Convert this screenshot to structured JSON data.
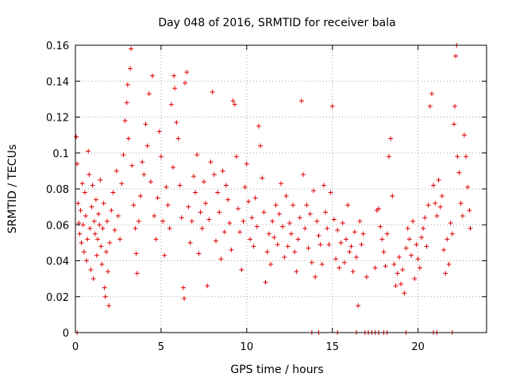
{
  "chart_data": {
    "type": "scatter",
    "title": "Day 048 of 2016, SRMTID for receiver bala",
    "xlabel": "GPS time / hours",
    "ylabel": "SRMTID / TECUs",
    "xlim": [
      0,
      24
    ],
    "ylim": [
      0,
      0.16
    ],
    "xticks": [
      0,
      5,
      10,
      15,
      20
    ],
    "xtick_labels": [
      "0",
      "5",
      "10",
      "15",
      "20"
    ],
    "yticks": [
      0,
      0.02,
      0.04,
      0.06,
      0.08,
      0.1,
      0.12,
      0.14,
      0.16
    ],
    "ytick_labels": [
      "0",
      "0.02",
      "0.04",
      "0.06",
      "0.08",
      "0.1",
      "0.12",
      "0.14",
      "0.16"
    ],
    "grid": true,
    "marker": "plus",
    "color": "#e00000",
    "series": [
      {
        "name": "SRMTID",
        "points": [
          [
            0.05,
            0.109
          ],
          [
            0.1,
            0.094
          ],
          [
            0.15,
            0.072
          ],
          [
            0.2,
            0.061
          ],
          [
            0.25,
            0.055
          ],
          [
            0.3,
            0.068
          ],
          [
            0.35,
            0.05
          ],
          [
            0.4,
            0.083
          ],
          [
            0.45,
            0.06
          ],
          [
            0.5,
            0.045
          ],
          [
            0.55,
            0.078
          ],
          [
            0.6,
            0.065
          ],
          [
            0.65,
            0.04
          ],
          [
            0.7,
            0.052
          ],
          [
            0.75,
            0.101
          ],
          [
            0.8,
            0.088
          ],
          [
            0.85,
            0.058
          ],
          [
            0.9,
            0.035
          ],
          [
            0.95,
            0.07
          ],
          [
            1.0,
            0.082
          ],
          [
            1.05,
            0.03
          ],
          [
            1.1,
            0.062
          ],
          [
            1.15,
            0.055
          ],
          [
            1.2,
            0.074
          ],
          [
            1.25,
            0.043
          ],
          [
            1.3,
            0.052
          ],
          [
            1.35,
            0.066
          ],
          [
            1.4,
            0.06
          ],
          [
            1.45,
            0.085
          ],
          [
            1.5,
            0.048
          ],
          [
            1.55,
            0.038
          ],
          [
            1.6,
            0.058
          ],
          [
            1.65,
            0.072
          ],
          [
            1.7,
            0.025
          ],
          [
            1.75,
            0.02
          ],
          [
            1.8,
            0.045
          ],
          [
            1.85,
            0.062
          ],
          [
            1.9,
            0.034
          ],
          [
            1.95,
            0.015
          ],
          [
            2.0,
            0.05
          ],
          [
            2.1,
            0.068
          ],
          [
            2.2,
            0.078
          ],
          [
            2.3,
            0.057
          ],
          [
            2.4,
            0.09
          ],
          [
            2.5,
            0.065
          ],
          [
            2.6,
            0.052
          ],
          [
            2.7,
            0.083
          ],
          [
            2.8,
            0.099
          ],
          [
            2.9,
            0.118
          ],
          [
            3.0,
            0.128
          ],
          [
            3.05,
            0.138
          ],
          [
            3.1,
            0.108
          ],
          [
            3.2,
            0.147
          ],
          [
            3.25,
            0.158
          ],
          [
            3.3,
            0.093
          ],
          [
            3.4,
            0.071
          ],
          [
            3.5,
            0.058
          ],
          [
            3.55,
            0.044
          ],
          [
            3.6,
            0.033
          ],
          [
            3.7,
            0.062
          ],
          [
            3.8,
            0.076
          ],
          [
            3.9,
            0.095
          ],
          [
            4.0,
            0.088
          ],
          [
            4.1,
            0.116
          ],
          [
            4.2,
            0.104
          ],
          [
            4.3,
            0.133
          ],
          [
            4.4,
            0.084
          ],
          [
            4.5,
            0.143
          ],
          [
            4.6,
            0.065
          ],
          [
            4.7,
            0.052
          ],
          [
            4.8,
            0.075
          ],
          [
            4.9,
            0.112
          ],
          [
            5.0,
            0.098
          ],
          [
            5.1,
            0.062
          ],
          [
            5.2,
            0.043
          ],
          [
            5.3,
            0.081
          ],
          [
            5.4,
            0.071
          ],
          [
            5.5,
            0.058
          ],
          [
            5.6,
            0.127
          ],
          [
            5.7,
            0.092
          ],
          [
            5.75,
            0.143
          ],
          [
            5.8,
            0.136
          ],
          [
            5.9,
            0.117
          ],
          [
            6.0,
            0.108
          ],
          [
            6.1,
            0.082
          ],
          [
            6.2,
            0.064
          ],
          [
            6.3,
            0.025
          ],
          [
            6.35,
            0.019
          ],
          [
            6.4,
            0.139
          ],
          [
            6.5,
            0.145
          ],
          [
            6.6,
            0.07
          ],
          [
            6.7,
            0.05
          ],
          [
            6.8,
            0.062
          ],
          [
            6.9,
            0.087
          ],
          [
            7.0,
            0.078
          ],
          [
            7.1,
            0.099
          ],
          [
            7.2,
            0.044
          ],
          [
            7.3,
            0.067
          ],
          [
            7.4,
            0.058
          ],
          [
            7.5,
            0.084
          ],
          [
            7.6,
            0.072
          ],
          [
            7.7,
            0.026
          ],
          [
            7.8,
            0.063
          ],
          [
            7.9,
            0.095
          ],
          [
            8.0,
            0.134
          ],
          [
            8.1,
            0.088
          ],
          [
            8.2,
            0.051
          ],
          [
            8.3,
            0.078
          ],
          [
            8.4,
            0.067
          ],
          [
            8.5,
            0.041
          ],
          [
            8.6,
            0.09
          ],
          [
            8.7,
            0.056
          ],
          [
            8.8,
            0.082
          ],
          [
            8.9,
            0.074
          ],
          [
            9.0,
            0.061
          ],
          [
            9.1,
            0.046
          ],
          [
            9.2,
            0.129
          ],
          [
            9.3,
            0.127
          ],
          [
            9.4,
            0.098
          ],
          [
            9.5,
            0.069
          ],
          [
            9.6,
            0.056
          ],
          [
            9.7,
            0.035
          ],
          [
            9.8,
            0.062
          ],
          [
            9.9,
            0.081
          ],
          [
            10.0,
            0.094
          ],
          [
            10.1,
            0.073
          ],
          [
            10.2,
            0.052
          ],
          [
            10.3,
            0.064
          ],
          [
            10.4,
            0.048
          ],
          [
            10.5,
            0.075
          ],
          [
            10.6,
            0.059
          ],
          [
            10.7,
            0.115
          ],
          [
            10.8,
            0.104
          ],
          [
            10.9,
            0.086
          ],
          [
            11.0,
            0.067
          ],
          [
            11.1,
            0.028
          ],
          [
            11.2,
            0.045
          ],
          [
            11.3,
            0.055
          ],
          [
            11.4,
            0.038
          ],
          [
            11.5,
            0.062
          ],
          [
            11.6,
            0.053
          ],
          [
            11.7,
            0.071
          ],
          [
            11.8,
            0.049
          ],
          [
            11.9,
            0.066
          ],
          [
            12.0,
            0.083
          ],
          [
            12.1,
            0.059
          ],
          [
            12.2,
            0.042
          ],
          [
            12.3,
            0.076
          ],
          [
            12.4,
            0.048
          ],
          [
            12.5,
            0.061
          ],
          [
            12.6,
            0.055
          ],
          [
            12.7,
            0.071
          ],
          [
            12.8,
            0.045
          ],
          [
            12.9,
            0.034
          ],
          [
            13.0,
            0.052
          ],
          [
            13.1,
            0.064
          ],
          [
            13.2,
            0.129
          ],
          [
            13.3,
            0.088
          ],
          [
            13.4,
            0.058
          ],
          [
            13.5,
            0.071
          ],
          [
            13.6,
            0.047
          ],
          [
            13.7,
            0.066
          ],
          [
            13.8,
            0.039
          ],
          [
            13.9,
            0.079
          ],
          [
            14.0,
            0.031
          ],
          [
            14.1,
            0.062
          ],
          [
            14.2,
            0.054
          ],
          [
            14.3,
            0.049
          ],
          [
            14.4,
            0.038
          ],
          [
            14.5,
            0.082
          ],
          [
            14.6,
            0.067
          ],
          [
            14.7,
            0.058
          ],
          [
            14.8,
            0.049
          ],
          [
            14.9,
            0.078
          ],
          [
            15.0,
            0.126
          ],
          [
            15.1,
            0.063
          ],
          [
            15.2,
            0.041
          ],
          [
            15.3,
            0.057
          ],
          [
            15.4,
            0.036
          ],
          [
            15.5,
            0.05
          ],
          [
            15.6,
            0.061
          ],
          [
            15.7,
            0.039
          ],
          [
            15.8,
            0.052
          ],
          [
            15.9,
            0.071
          ],
          [
            16.0,
            0.045
          ],
          [
            16.1,
            0.048
          ],
          [
            16.2,
            0.034
          ],
          [
            16.3,
            0.056
          ],
          [
            16.4,
            0.042
          ],
          [
            16.5,
            0.015
          ],
          [
            16.6,
            0.062
          ],
          [
            16.7,
            0.049
          ],
          [
            16.8,
            0.055
          ],
          [
            17.0,
            0.031
          ],
          [
            17.5,
            0.036
          ],
          [
            17.6,
            0.068
          ],
          [
            17.7,
            0.069
          ],
          [
            17.8,
            0.059
          ],
          [
            17.9,
            0.052
          ],
          [
            18.0,
            0.045
          ],
          [
            18.1,
            0.037
          ],
          [
            18.2,
            0.055
          ],
          [
            18.3,
            0.098
          ],
          [
            18.4,
            0.108
          ],
          [
            18.5,
            0.076
          ],
          [
            18.6,
            0.038
          ],
          [
            18.7,
            0.026
          ],
          [
            18.8,
            0.033
          ],
          [
            18.9,
            0.042
          ],
          [
            19.0,
            0.027
          ],
          [
            19.1,
            0.035
          ],
          [
            19.2,
            0.022
          ],
          [
            19.3,
            0.047
          ],
          [
            19.4,
            0.058
          ],
          [
            19.5,
            0.052
          ],
          [
            19.6,
            0.043
          ],
          [
            19.7,
            0.062
          ],
          [
            19.8,
            0.03
          ],
          [
            19.9,
            0.049
          ],
          [
            20.0,
            0.041
          ],
          [
            20.1,
            0.036
          ],
          [
            20.2,
            0.053
          ],
          [
            20.3,
            0.058
          ],
          [
            20.4,
            0.064
          ],
          [
            20.5,
            0.048
          ],
          [
            20.6,
            0.071
          ],
          [
            20.7,
            0.126
          ],
          [
            20.8,
            0.133
          ],
          [
            20.9,
            0.082
          ],
          [
            21.0,
            0.072
          ],
          [
            21.1,
            0.065
          ],
          [
            21.2,
            0.085
          ],
          [
            21.3,
            0.07
          ],
          [
            21.4,
            0.076
          ],
          [
            21.5,
            0.046
          ],
          [
            21.6,
            0.033
          ],
          [
            21.7,
            0.052
          ],
          [
            21.8,
            0.038
          ],
          [
            21.9,
            0.061
          ],
          [
            22.0,
            0.055
          ],
          [
            22.1,
            0.116
          ],
          [
            22.15,
            0.126
          ],
          [
            22.2,
            0.154
          ],
          [
            22.25,
            0.16
          ],
          [
            22.3,
            0.098
          ],
          [
            22.4,
            0.089
          ],
          [
            22.5,
            0.072
          ],
          [
            22.6,
            0.065
          ],
          [
            22.7,
            0.11
          ],
          [
            22.8,
            0.098
          ],
          [
            22.9,
            0.081
          ],
          [
            23.0,
            0.068
          ],
          [
            23.05,
            0.058
          ],
          [
            0.1,
            0.0
          ],
          [
            13.8,
            0.0
          ],
          [
            14.2,
            0.0
          ],
          [
            15.3,
            0.0
          ],
          [
            16.4,
            0.0
          ],
          [
            16.9,
            0.0
          ],
          [
            17.1,
            0.0
          ],
          [
            17.3,
            0.0
          ],
          [
            17.5,
            0.0
          ],
          [
            17.7,
            0.0
          ],
          [
            18.0,
            0.0
          ],
          [
            18.2,
            0.0
          ],
          [
            19.3,
            0.0
          ],
          [
            20.9,
            0.0
          ],
          [
            21.1,
            0.0
          ],
          [
            22.0,
            0.0
          ]
        ]
      }
    ]
  }
}
